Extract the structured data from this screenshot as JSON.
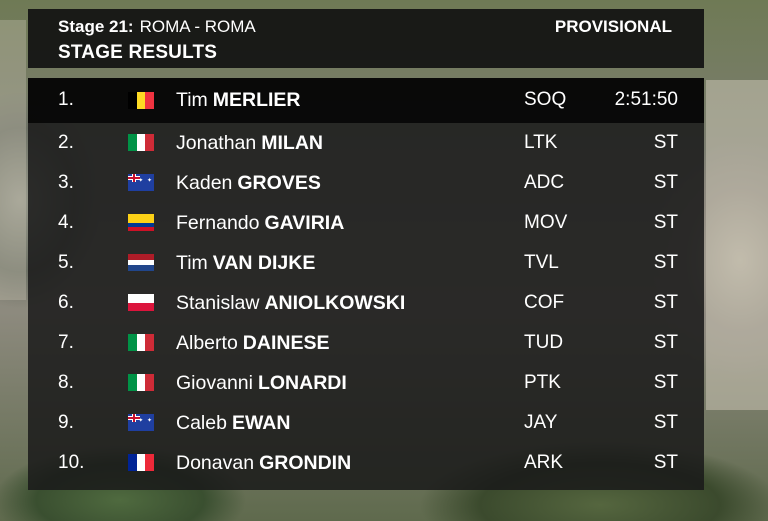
{
  "header": {
    "stage_number": "Stage 21:",
    "stage_route": "ROMA - ROMA",
    "title": "STAGE RESULTS",
    "status": "PROVISIONAL"
  },
  "results": [
    {
      "pos": "1.",
      "first": "Tim",
      "last": "MERLIER",
      "team": "SOQ",
      "time": "2:51:50",
      "flag": "belgium-flag"
    },
    {
      "pos": "2.",
      "first": "Jonathan",
      "last": "MILAN",
      "team": "LTK",
      "time": "ST",
      "flag": "italy-flag"
    },
    {
      "pos": "3.",
      "first": "Kaden",
      "last": "GROVES",
      "team": "ADC",
      "time": "ST",
      "flag": "australia-flag"
    },
    {
      "pos": "4.",
      "first": "Fernando",
      "last": "GAVIRIA",
      "team": "MOV",
      "time": "ST",
      "flag": "colombia-flag"
    },
    {
      "pos": "5.",
      "first": "Tim",
      "last": "VAN DIJKE",
      "team": "TVL",
      "time": "ST",
      "flag": "netherlands-flag"
    },
    {
      "pos": "6.",
      "first": "Stanislaw",
      "last": "ANIOLKOWSKI",
      "team": "COF",
      "time": "ST",
      "flag": "poland-flag"
    },
    {
      "pos": "7.",
      "first": "Alberto",
      "last": "DAINESE",
      "team": "TUD",
      "time": "ST",
      "flag": "italy-flag"
    },
    {
      "pos": "8.",
      "first": "Giovanni",
      "last": "LONARDI",
      "team": "PTK",
      "time": "ST",
      "flag": "italy-flag"
    },
    {
      "pos": "9.",
      "first": "Caleb",
      "last": "EWAN",
      "team": "JAY",
      "time": "ST",
      "flag": "australia-flag"
    },
    {
      "pos": "10.",
      "first": "Donavan",
      "last": "GRONDIN",
      "team": "ARK",
      "time": "ST",
      "flag": "france-flag"
    }
  ],
  "colors": {
    "panel": "#1a1a1a",
    "leader_row": "#060606",
    "text": "#ffffff"
  }
}
